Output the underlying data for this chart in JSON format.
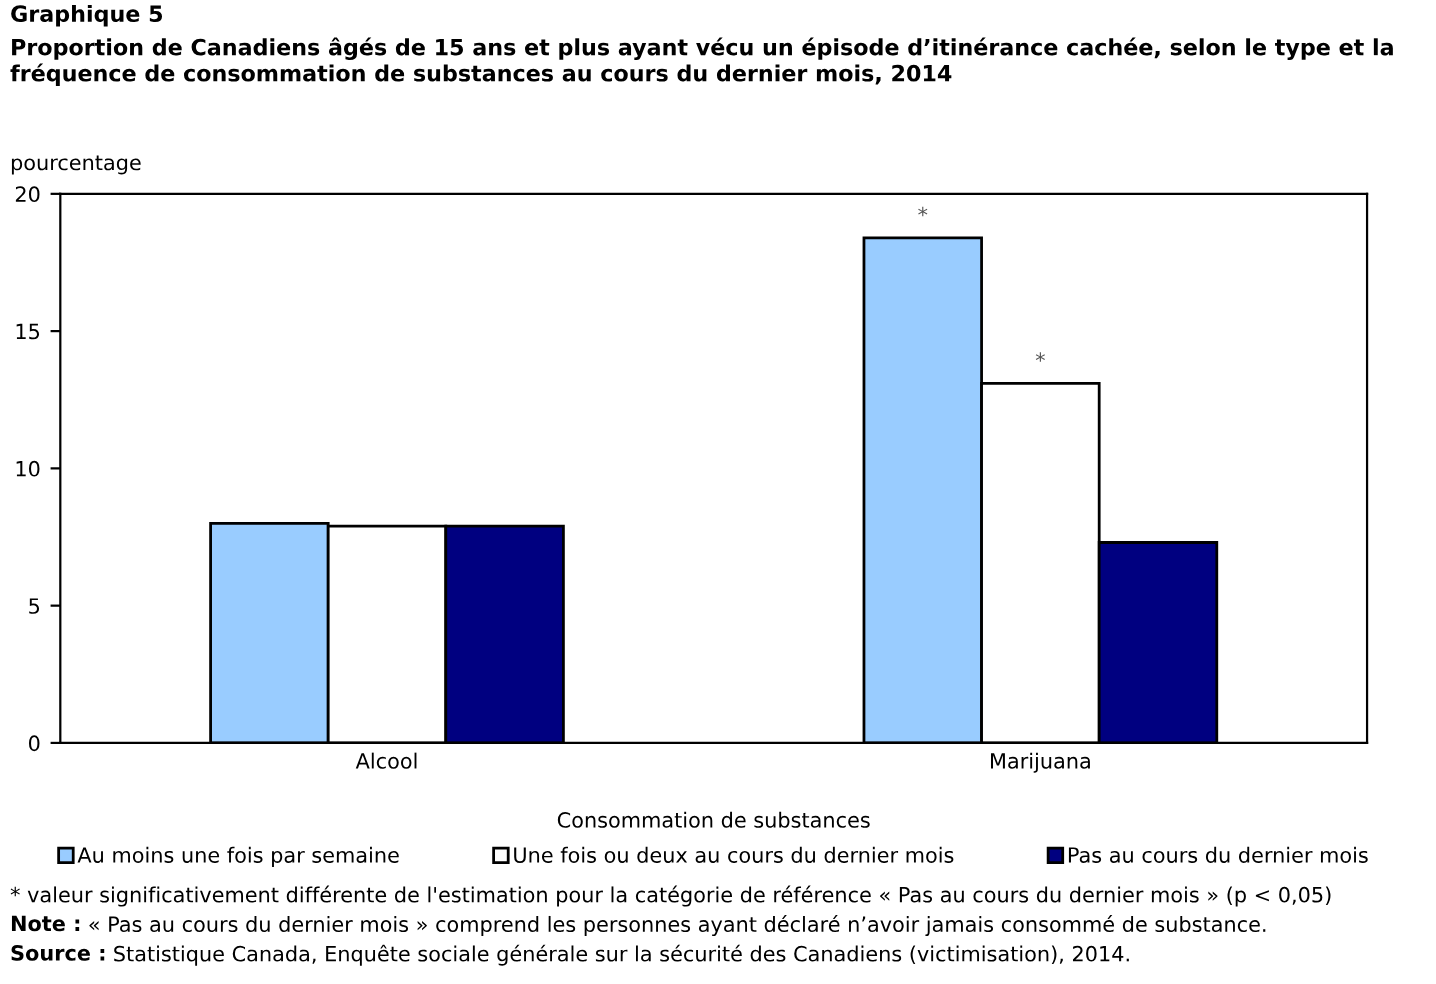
{
  "chart_data": {
    "type": "bar",
    "title": "Graphique 5\nProportion de Canadiens âgés de 15 ans et plus ayant vécu un épisode d’itinérance cachée, selon le type et la fréquence de consommation de substances au cours du dernier mois, 2014",
    "ylabel": "pourcentage",
    "xlabel": "Consommation de substances",
    "categories": [
      "Alcool",
      "Marijuana"
    ],
    "series": [
      {
        "name": "Au moins une fois par semaine",
        "color": "#99ccff",
        "values": [
          8.0,
          18.4
        ],
        "value_labels": [
          null,
          "*"
        ]
      },
      {
        "name": "Une fois ou deux au cours du dernier mois",
        "color": "#ffffff",
        "values": [
          7.9,
          13.1
        ],
        "value_labels": [
          null,
          "*"
        ]
      },
      {
        "name": "Pas au cours du dernier mois",
        "color": "#000080",
        "values": [
          7.9,
          7.3
        ]
      }
    ],
    "ylim": [
      0,
      20
    ],
    "yticks": [
      0,
      5,
      10,
      15,
      20
    ],
    "grid": false,
    "legend": "bottom",
    "annotations": [
      "* valeur significativement différente de l'estimation pour la catégorie de référence « Pas au cours du dernier mois » (p < 0,05)",
      "Note : « Pas au cours du dernier mois » comprend les personnes ayant déclaré n’avoir jamais consommé de substance.",
      "Source : Statistique Canada, Enquête sociale générale sur la sécurité des Canadiens (victimisation), 2014."
    ]
  }
}
